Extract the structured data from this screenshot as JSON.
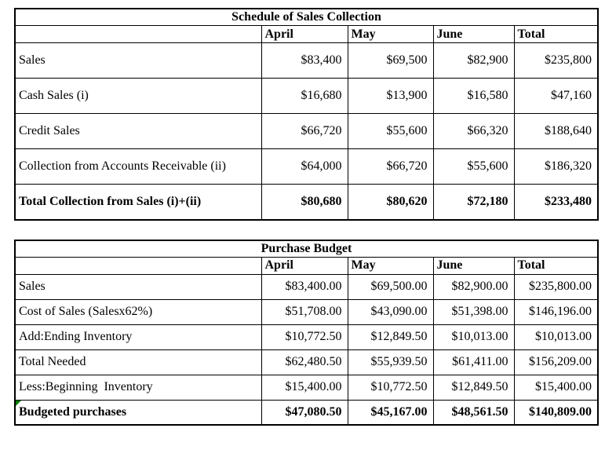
{
  "colors": {
    "marker_green": "#008000",
    "border": "#000000",
    "background": "#ffffff",
    "text": "#000000"
  },
  "tables": [
    {
      "title": "Schedule of Sales Collection",
      "columns": [
        "April",
        "May",
        "June",
        "Total"
      ],
      "rows": [
        {
          "label": "Sales",
          "values": [
            "$83,400",
            "$69,500",
            "$82,900",
            "$235,800"
          ],
          "bold": false,
          "marker": false
        },
        {
          "label": "Cash Sales (i)",
          "values": [
            "$16,680",
            "$13,900",
            "$16,580",
            "$47,160"
          ],
          "bold": false,
          "marker": false
        },
        {
          "label": "Credit Sales",
          "values": [
            "$66,720",
            "$55,600",
            "$66,320",
            "$188,640"
          ],
          "bold": false,
          "marker": false
        },
        {
          "label": "Collection from Accounts Receivable (ii)",
          "values": [
            "$64,000",
            "$66,720",
            "$55,600",
            "$186,320"
          ],
          "bold": false,
          "marker": false
        },
        {
          "label": "Total Collection from Sales (i)+(ii)",
          "values": [
            "$80,680",
            "$80,620",
            "$72,180",
            "$233,480"
          ],
          "bold": true,
          "marker": false
        }
      ]
    },
    {
      "title": "Purchase Budget",
      "columns": [
        "April",
        "May",
        "June",
        "Total"
      ],
      "rows": [
        {
          "label": "Sales",
          "values": [
            "$83,400.00",
            "$69,500.00",
            "$82,900.00",
            "$235,800.00"
          ],
          "bold": false,
          "marker": false
        },
        {
          "label": "Cost of Sales (Salesx62%)",
          "values": [
            "$51,708.00",
            "$43,090.00",
            "$51,398.00",
            "$146,196.00"
          ],
          "bold": false,
          "marker": false
        },
        {
          "label": "Add:Ending Inventory",
          "values": [
            "$10,772.50",
            "$12,849.50",
            "$10,013.00",
            "$10,013.00"
          ],
          "bold": false,
          "marker": false
        },
        {
          "label": "Total Needed",
          "values": [
            "$62,480.50",
            "$55,939.50",
            "$61,411.00",
            "$156,209.00"
          ],
          "bold": false,
          "marker": false
        },
        {
          "label": "Less:Beginning  Inventory",
          "values": [
            "$15,400.00",
            "$10,772.50",
            "$12,849.50",
            "$15,400.00"
          ],
          "bold": false,
          "marker": false
        },
        {
          "label": "Budgeted purchases",
          "values": [
            "$47,080.50",
            "$45,167.00",
            "$48,561.50",
            "$140,809.00"
          ],
          "bold": true,
          "marker": true
        }
      ]
    }
  ]
}
